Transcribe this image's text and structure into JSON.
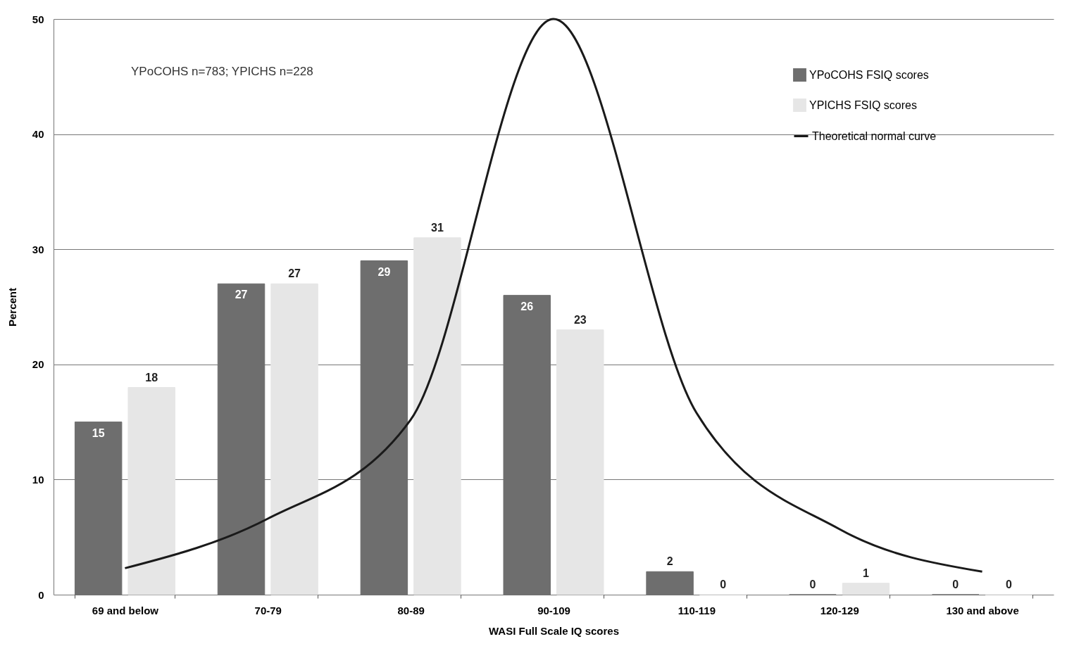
{
  "chart_data": {
    "type": "bar",
    "xlabel": "WASI Full Scale IQ scores",
    "ylabel": "Percent",
    "categories": [
      "69 and below",
      "70-79",
      "80-89",
      "90-109",
      "110-119",
      "120-129",
      "130 and above"
    ],
    "series": [
      {
        "name": "YPoCOHS FSIQ scores",
        "color": "#6e6e6e",
        "values": [
          15,
          27,
          29,
          26,
          2,
          0,
          0
        ],
        "value_labels": [
          "15",
          "27",
          "29",
          "26",
          "2",
          "0",
          "0"
        ]
      },
      {
        "name": "YPICHS FSIQ scores",
        "color": "#e6e6e6",
        "values": [
          18,
          27,
          31,
          23,
          0,
          1,
          0
        ],
        "value_labels": [
          "18",
          "27",
          "31",
          "23",
          "0",
          "1",
          "0"
        ]
      },
      {
        "name": "Theoretical normal curve",
        "type": "line",
        "color": "#1a1a1a",
        "values": [
          2.3,
          6.6,
          15.2,
          50,
          15.8,
          5.7,
          2
        ]
      }
    ],
    "ylim": [
      0,
      50
    ],
    "yticks": [
      0,
      10,
      20,
      30,
      40,
      50
    ],
    "grid": "y",
    "legend": "top right",
    "annotations": [
      "YPoCOHS n=783; YPICHS n=228"
    ]
  }
}
